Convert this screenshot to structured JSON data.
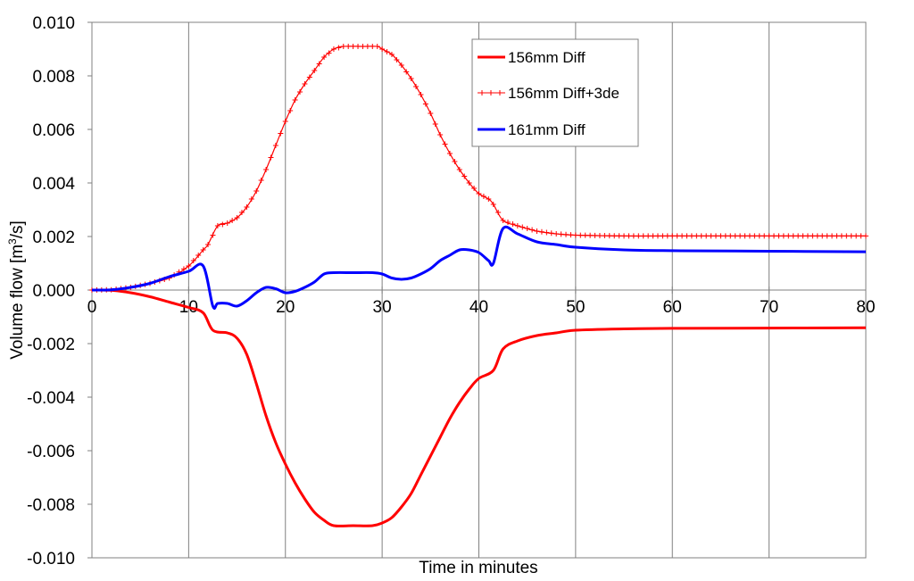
{
  "chart_data": {
    "type": "line",
    "title": "",
    "xlabel": "Time in minutes",
    "ylabel_main": "Volume flow [m",
    "ylabel_sup": "3",
    "ylabel_tail": "/s]",
    "xlim": [
      0,
      80
    ],
    "ylim": [
      -0.01,
      0.01
    ],
    "x_ticks": [
      0,
      10,
      20,
      30,
      40,
      50,
      60,
      70,
      80
    ],
    "x_tick_labels": [
      "0",
      "10",
      "20",
      "30",
      "40",
      "50",
      "60",
      "70",
      "80"
    ],
    "y_ticks": [
      0.01,
      0.008,
      0.006,
      0.004,
      0.002,
      0.0,
      -0.002,
      -0.004,
      -0.006,
      -0.008,
      -0.01
    ],
    "y_tick_labels": [
      "0.010",
      "0.008",
      "0.006",
      "0.004",
      "0.002",
      "0.000",
      "-0.002",
      "-0.004",
      "-0.006",
      "-0.008",
      "-0.010"
    ],
    "grid": "vertical",
    "legend": "top-center",
    "series": [
      {
        "name": "156mm Diff",
        "color": "#ff0000",
        "style": "line",
        "points": [
          [
            0,
            0
          ],
          [
            2,
            -1e-05
          ],
          [
            4,
            -0.0001
          ],
          [
            6,
            -0.00025
          ],
          [
            8,
            -0.00045
          ],
          [
            10,
            -0.00065
          ],
          [
            11.5,
            -0.00085
          ],
          [
            12.5,
            -0.0015
          ],
          [
            14,
            -0.0016
          ],
          [
            15,
            -0.0018
          ],
          [
            16,
            -0.0024
          ],
          [
            17,
            -0.0035
          ],
          [
            18,
            -0.0047
          ],
          [
            19,
            -0.0057
          ],
          [
            20,
            -0.0065
          ],
          [
            21,
            -0.0072
          ],
          [
            22,
            -0.0078
          ],
          [
            23,
            -0.0083
          ],
          [
            24,
            -0.0086
          ],
          [
            25,
            -0.0088
          ],
          [
            27,
            -0.0088
          ],
          [
            29,
            -0.0088
          ],
          [
            30,
            -0.0087
          ],
          [
            31,
            -0.0085
          ],
          [
            32,
            -0.0081
          ],
          [
            33,
            -0.0076
          ],
          [
            34,
            -0.0069
          ],
          [
            35,
            -0.0062
          ],
          [
            36,
            -0.0055
          ],
          [
            37,
            -0.0048
          ],
          [
            38,
            -0.0042
          ],
          [
            39,
            -0.0037
          ],
          [
            40,
            -0.0033
          ],
          [
            41.5,
            -0.003
          ],
          [
            42.5,
            -0.0022
          ],
          [
            44,
            -0.0019
          ],
          [
            46,
            -0.0017
          ],
          [
            48,
            -0.0016
          ],
          [
            50,
            -0.0015
          ],
          [
            55,
            -0.00145
          ],
          [
            60,
            -0.00143
          ],
          [
            70,
            -0.00142
          ],
          [
            80,
            -0.00141
          ]
        ]
      },
      {
        "name": "156mm Diff+3de",
        "color": "#ff0000",
        "style": "line-plus",
        "points": [
          [
            0,
            0
          ],
          [
            2,
            1e-05
          ],
          [
            4,
            0.0001
          ],
          [
            6,
            0.00025
          ],
          [
            8,
            0.00045
          ],
          [
            10,
            0.0009
          ],
          [
            11.5,
            0.0015
          ],
          [
            12,
            0.0017
          ],
          [
            13,
            0.0024
          ],
          [
            14,
            0.0025
          ],
          [
            15,
            0.0027
          ],
          [
            16,
            0.0031
          ],
          [
            17,
            0.0037
          ],
          [
            18,
            0.0045
          ],
          [
            19,
            0.0054
          ],
          [
            20,
            0.0063
          ],
          [
            21,
            0.0071
          ],
          [
            22,
            0.0077
          ],
          [
            23,
            0.0082
          ],
          [
            24,
            0.0087
          ],
          [
            25,
            0.009
          ],
          [
            26,
            0.0091
          ],
          [
            28,
            0.0091
          ],
          [
            29.5,
            0.0091
          ],
          [
            30,
            0.009
          ],
          [
            31,
            0.0088
          ],
          [
            32,
            0.0084
          ],
          [
            33,
            0.0079
          ],
          [
            34,
            0.0073
          ],
          [
            35,
            0.0066
          ],
          [
            36,
            0.0058
          ],
          [
            37,
            0.0051
          ],
          [
            38,
            0.0045
          ],
          [
            39,
            0.004
          ],
          [
            40,
            0.0036
          ],
          [
            41,
            0.0034
          ],
          [
            41.5,
            0.0032
          ],
          [
            42.5,
            0.0026
          ],
          [
            44,
            0.0024
          ],
          [
            46,
            0.0022
          ],
          [
            48,
            0.0021
          ],
          [
            50,
            0.00205
          ],
          [
            55,
            0.00202
          ],
          [
            60,
            0.00202
          ],
          [
            70,
            0.00202
          ],
          [
            80,
            0.00202
          ]
        ]
      },
      {
        "name": "161mm Diff",
        "color": "#0000ff",
        "style": "line",
        "points": [
          [
            0,
            0
          ],
          [
            2,
            1e-05
          ],
          [
            4,
            0.0001
          ],
          [
            6,
            0.00025
          ],
          [
            8,
            0.0005
          ],
          [
            10,
            0.0007
          ],
          [
            11.5,
            0.0009
          ],
          [
            12.5,
            -0.0006
          ],
          [
            13,
            -0.0005
          ],
          [
            14,
            -0.0005
          ],
          [
            15,
            -0.0006
          ],
          [
            16,
            -0.0004
          ],
          [
            17,
            -0.0001
          ],
          [
            18,
            0.0001
          ],
          [
            19,
            5e-05
          ],
          [
            20,
            -0.0001
          ],
          [
            21,
            -5e-05
          ],
          [
            22,
            0.0001
          ],
          [
            23,
            0.0003
          ],
          [
            24,
            0.0006
          ],
          [
            25,
            0.00065
          ],
          [
            27,
            0.00065
          ],
          [
            29,
            0.00065
          ],
          [
            30,
            0.0006
          ],
          [
            31,
            0.00045
          ],
          [
            32,
            0.0004
          ],
          [
            33,
            0.00045
          ],
          [
            34,
            0.0006
          ],
          [
            35,
            0.0008
          ],
          [
            36,
            0.0011
          ],
          [
            37,
            0.0013
          ],
          [
            38,
            0.0015
          ],
          [
            39,
            0.0015
          ],
          [
            40,
            0.0014
          ],
          [
            41,
            0.0011
          ],
          [
            41.5,
            0.001
          ],
          [
            42.5,
            0.0023
          ],
          [
            44,
            0.0021
          ],
          [
            46,
            0.0018
          ],
          [
            48,
            0.0017
          ],
          [
            50,
            0.0016
          ],
          [
            55,
            0.0015
          ],
          [
            60,
            0.00147
          ],
          [
            70,
            0.00145
          ],
          [
            80,
            0.00143
          ]
        ]
      }
    ]
  }
}
